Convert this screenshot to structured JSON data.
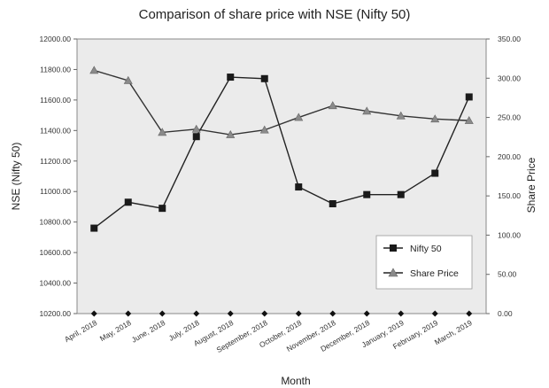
{
  "chart_data": {
    "type": "line",
    "title": "Comparison of share price with NSE (Nifty 50)",
    "xlabel": "Month",
    "ylabel_left": "NSE (Nifty 50)",
    "ylabel_right": "Share Price",
    "categories": [
      "April, 2018",
      "May, 2018",
      "June, 2018",
      "July, 2018",
      "August, 2018",
      "September, 2018",
      "October, 2018",
      "November, 2018",
      "December, 2018",
      "January, 2019",
      "February, 2019",
      "March, 2019"
    ],
    "y_left_ticks": [
      "10200.00",
      "10400.00",
      "10600.00",
      "10800.00",
      "11000.00",
      "11200.00",
      "11400.00",
      "11600.00",
      "11800.00",
      "12000.00"
    ],
    "y_right_ticks": [
      "0.00",
      "50.00",
      "100.00",
      "150.00",
      "200.00",
      "250.00",
      "300.00",
      "350.00"
    ],
    "ylim_left": [
      10200,
      12000
    ],
    "ylim_right": [
      0,
      350
    ],
    "grid": false,
    "legend_position": "bottom-right",
    "series": [
      {
        "name": "Nifty 50",
        "axis": "left",
        "marker": "square",
        "color": "#222222",
        "values": [
          10760,
          10930,
          10890,
          11360,
          11750,
          11740,
          11030,
          10920,
          10980,
          10980,
          11120,
          11620
        ]
      },
      {
        "name": "Share Price",
        "axis": "right",
        "marker": "triangle",
        "color": "#333333",
        "values": [
          310,
          297,
          231,
          235,
          228,
          234,
          250,
          265,
          258,
          252,
          248,
          246
        ]
      }
    ]
  }
}
